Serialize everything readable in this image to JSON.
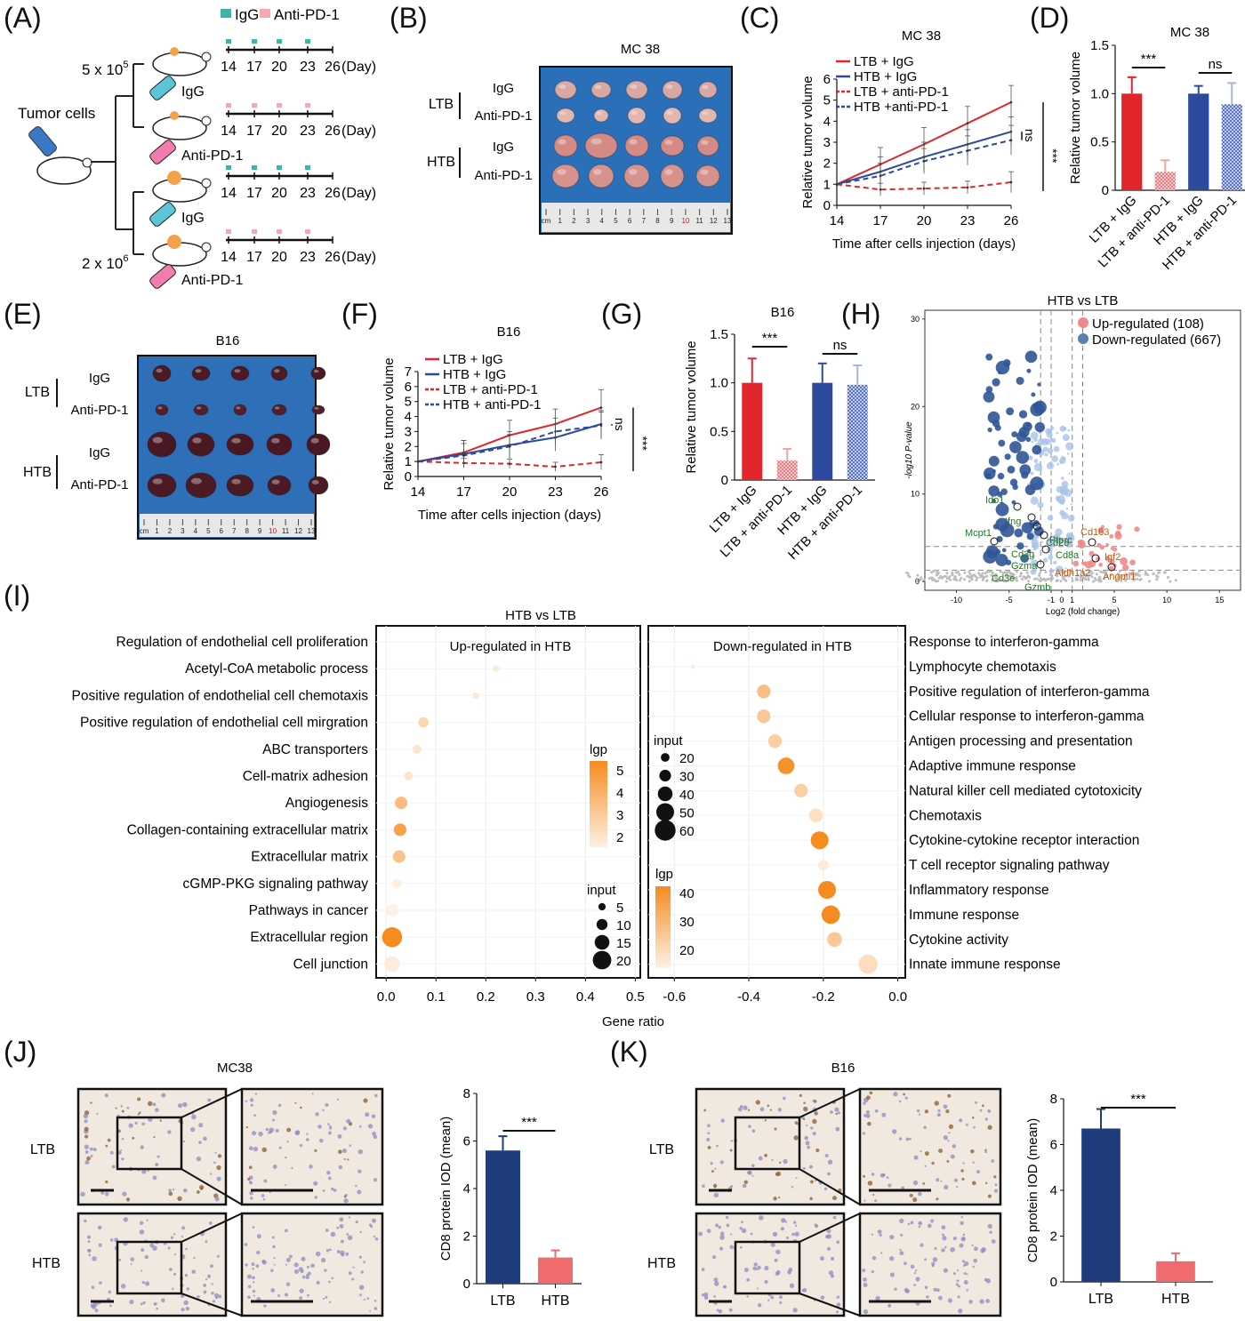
{
  "panels": [
    "(A)",
    "(B)",
    "(C)",
    "(D)",
    "(E)",
    "(F)",
    "(G)",
    "(H)",
    "(I)",
    "(J)",
    "(K)"
  ],
  "panelA": {
    "legend_igg": "IgG",
    "legend_anti": "Anti-PD-1",
    "tumor_cells": "Tumor cells",
    "dose_low": "5 x 10",
    "dose_low_exp": "5",
    "dose_high": "2 x 10",
    "dose_high_exp": "6",
    "timeline": [
      "14",
      "17",
      "20",
      "23",
      "26"
    ],
    "day_label": "(Day)",
    "syringe_labels": [
      "IgG",
      "Anti-PD-1",
      "IgG",
      "Anti-PD-1"
    ],
    "colors": {
      "igg": "#3bb5a7",
      "anti": "#f4a9b1",
      "syringe_igg": "#5bc6d8",
      "syringe_anti": "#f07cb0"
    }
  },
  "panelB": {
    "title": "MC 38",
    "groups": [
      "LTB",
      "HTB"
    ],
    "rows": [
      "IgG",
      "Anti-PD-1",
      "IgG",
      "Anti-PD-1"
    ],
    "ruler": [
      "cm",
      "1",
      "2",
      "3",
      "4",
      "5",
      "6",
      "7",
      "8",
      "9",
      "10",
      "11",
      "12",
      "13"
    ]
  },
  "panelE": {
    "title": "B16",
    "groups": [
      "LTB",
      "HTB"
    ],
    "rows": [
      "IgG",
      "Anti-PD-1",
      "IgG",
      "Anti-PD-1"
    ],
    "ruler": [
      "cm",
      "1",
      "2",
      "3",
      "4",
      "5",
      "6",
      "7",
      "8",
      "9",
      "10",
      "11",
      "12",
      "13"
    ]
  },
  "panelH": {
    "up_label": "Up-regulated (108)",
    "down_label": "Down-regulated (667)",
    "gene_labels": [
      "Ido1",
      "Ifng",
      "Mcpt1",
      "Ptprc",
      "Cd28",
      "Cd3g",
      "Cd8a",
      "Gzma",
      "Cd3e",
      "Gzmb",
      "Cd163",
      "Igf2",
      "Aldh1a2",
      "Angptl1"
    ]
  },
  "panelI": {
    "title": "HTB vs LTB",
    "up_title": "Up-regulated in HTB",
    "down_title": "Down-regulated in HTB",
    "xlabel": "Gene ratio",
    "legend_lgp": "lgp",
    "legend_input": "input"
  },
  "panelJ": {
    "title": "MC38",
    "rows": [
      "LTB",
      "HTB"
    ]
  },
  "panelK": {
    "title": "B16",
    "rows": [
      "LTB",
      "HTB"
    ]
  },
  "chart_data": [
    {
      "id": "C",
      "type": "line",
      "title": "MC 38",
      "xlabel": "Time after cells injection (days)",
      "ylabel": "Relative tumor volume",
      "x": [
        14,
        17,
        20,
        23,
        26
      ],
      "ylim": [
        0,
        6
      ],
      "yticks": [
        0,
        1,
        2,
        3,
        4,
        5,
        6
      ],
      "series": [
        {
          "name": "LTB + IgG",
          "values": [
            1,
            1.95,
            2.9,
            3.9,
            4.9
          ],
          "err": [
            0,
            0.8,
            0.8,
            0.8,
            0.8
          ],
          "color": "#e0262b",
          "dash": false
        },
        {
          "name": "HTB + IgG",
          "values": [
            1,
            1.6,
            2.3,
            2.9,
            3.5
          ],
          "err": [
            0,
            0.7,
            0.7,
            0.7,
            0.7
          ],
          "color": "#2e4a9e",
          "dash": false
        },
        {
          "name": "LTB + anti-PD-1",
          "values": [
            1,
            0.75,
            0.8,
            0.85,
            1.1
          ],
          "err": [
            0,
            0.3,
            0.3,
            0.3,
            0.5
          ],
          "color": "#e0262b",
          "dash": true
        },
        {
          "name": "HTB +anti-PD-1",
          "values": [
            1,
            1.4,
            2.1,
            2.6,
            3.1
          ],
          "err": [
            0,
            0.6,
            0.6,
            0.7,
            0.7
          ],
          "color": "#2e4a9e",
          "dash": true
        }
      ],
      "annotations": [
        "ns",
        "***"
      ]
    },
    {
      "id": "D",
      "type": "bar",
      "title": "MC 38",
      "ylabel": "Relative tumor volume",
      "categories": [
        "LTB + IgG",
        "LTB + anti-PD-1",
        "HTB + IgG",
        "HTB + anti-PD-1"
      ],
      "values": [
        1.0,
        0.19,
        1.0,
        0.89
      ],
      "err": [
        0.17,
        0.12,
        0.08,
        0.22
      ],
      "colors": [
        "#e0262b",
        "#f2a3a5",
        "#2e4a9e",
        "#a7b6e0"
      ],
      "ylim": [
        0,
        1.5
      ],
      "yticks": [
        "0",
        "0.5",
        "1.0",
        "1.5"
      ],
      "annotations": [
        "***",
        "ns"
      ]
    },
    {
      "id": "F",
      "type": "line",
      "title": "B16",
      "xlabel": "Time after cells injection (days)",
      "ylabel": "Relative tumor volume",
      "x": [
        14,
        17,
        20,
        23,
        26
      ],
      "ylim": [
        0,
        7
      ],
      "yticks": [
        0,
        1,
        2,
        3,
        4,
        5,
        6,
        7
      ],
      "series": [
        {
          "name": "LTB + IgG",
          "values": [
            1,
            1.6,
            2.75,
            3.5,
            4.6
          ],
          "err": [
            0,
            0.8,
            1.0,
            1.0,
            1.2
          ],
          "color": "#e0262b",
          "dash": false
        },
        {
          "name": "HTB + IgG",
          "values": [
            1,
            1.5,
            2.1,
            2.6,
            3.5
          ],
          "err": [
            0,
            0.9,
            0.9,
            0.9,
            0.9
          ],
          "color": "#2e4a9e",
          "dash": false
        },
        {
          "name": "LTB + anti-PD-1",
          "values": [
            1,
            0.9,
            0.85,
            0.65,
            0.95
          ],
          "err": [
            0,
            0.3,
            0.3,
            0.3,
            0.5
          ],
          "color": "#e0262b",
          "dash": true
        },
        {
          "name": "HTB + anti-PD-1",
          "values": [
            1,
            1.4,
            2.0,
            3.0,
            3.4
          ],
          "err": [
            0,
            0.8,
            0.8,
            0.9,
            0.9
          ],
          "color": "#2e4a9e",
          "dash": true
        }
      ],
      "annotations": [
        "ns",
        "***"
      ]
    },
    {
      "id": "G",
      "type": "bar",
      "title": "B16",
      "ylabel": "Relative tumor volume",
      "categories": [
        "LTB + IgG",
        "LTB + anti-PD-1",
        "HTB + IgG",
        "HTB + anti-PD-1"
      ],
      "values": [
        1.0,
        0.2,
        1.0,
        0.98
      ],
      "err": [
        0.25,
        0.12,
        0.2,
        0.2
      ],
      "colors": [
        "#e0262b",
        "#f2a3a5",
        "#2e4a9e",
        "#a7b6e0"
      ],
      "ylim": [
        0,
        1.5
      ],
      "yticks": [
        "0",
        "0.5",
        "1.0",
        "1.5"
      ],
      "annotations": [
        "***",
        "ns"
      ]
    },
    {
      "id": "H",
      "type": "scatter",
      "title": "HTB vs LTB",
      "xlabel": "Log2 (fold change)",
      "ylabel": "-log10 P-value",
      "xlim": [
        -13,
        17
      ],
      "ylim": [
        -1,
        31
      ],
      "xticks": [
        "-10",
        "-5",
        "-1",
        "0",
        "1",
        "5",
        "10",
        "15"
      ],
      "yticks": [
        "0",
        "10",
        "20",
        "30"
      ],
      "legend": [
        "Up-regulated (108)",
        "Down-regulated (667)"
      ]
    },
    {
      "id": "I-up",
      "type": "scatter",
      "title": "Up-regulated in HTB",
      "xlabel": "Gene ratio",
      "xlim": [
        -0.02,
        0.51
      ],
      "xticks": [
        "0.0",
        "0.1",
        "0.2",
        "0.3",
        "0.4",
        "0.5"
      ],
      "categories": [
        "Regulation of endothelial cell proliferation",
        "Acetyl-CoA metabolic process",
        "Positive regulation of endothelial cell chemotaxis",
        "Positive regulation of endothelial cell mirgration",
        "ABC transporters",
        "Cell-matrix adhesion",
        "Angiogenesis",
        "Collagen-containing extracellular matrix",
        "Extracellular matrix",
        "cGMP-PKG signaling pathway",
        "Pathways in cancer",
        "Extracellular region",
        "Cell junction"
      ],
      "x": [
        null,
        0.22,
        0.18,
        0.075,
        0.062,
        0.045,
        0.03,
        0.028,
        0.026,
        0.022,
        0.012,
        0.012,
        0.012
      ],
      "lgp": [
        null,
        1.6,
        1.6,
        2.4,
        1.8,
        1.8,
        3.5,
        4.6,
        3.2,
        1.4,
        1.3,
        5.5,
        1.5
      ],
      "input": [
        null,
        4,
        4,
        9,
        7,
        7,
        12,
        12,
        12,
        8,
        12,
        22,
        16
      ],
      "legend_lgp": [
        "5",
        "4",
        "3",
        "2"
      ],
      "legend_input": [
        "5",
        "10",
        "15",
        "20"
      ]
    },
    {
      "id": "I-down",
      "type": "scatter",
      "title": "Down-regulated in HTB",
      "xlabel": "Gene ratio",
      "xlim": [
        -0.67,
        0.02
      ],
      "xticks": [
        "-0.6",
        "-0.4",
        "-0.2",
        "0.0"
      ],
      "categories": [
        "Response to interferon-gamma",
        "Lymphocyte chemotaxis",
        "Positive regulation of interferon-gamma",
        "Cellular response to interferon-gamma",
        "Antigen processing and presentation",
        "Adaptive immune response",
        "Natural killer cell mediated cytotoxicity",
        "Chemotaxis",
        "Cytokine-cytokine receptor interaction",
        "T cell receptor signaling pathway",
        "Inflammatory response",
        "Immune response",
        "Cytokine activity",
        "Innate immune response"
      ],
      "x": [
        null,
        -0.55,
        -0.36,
        -0.36,
        -0.33,
        -0.3,
        -0.26,
        -0.22,
        -0.21,
        -0.2,
        -0.19,
        -0.18,
        -0.17,
        -0.08
      ],
      "lgp": [
        null,
        12,
        25,
        22,
        20,
        38,
        20,
        15,
        40,
        12,
        40,
        40,
        22,
        16
      ],
      "input": [
        null,
        6,
        36,
        36,
        36,
        46,
        36,
        36,
        50,
        26,
        50,
        52,
        40,
        54
      ],
      "legend_lgp": [
        "40",
        "30",
        "20"
      ],
      "legend_input": [
        "20",
        "30",
        "40",
        "50",
        "60"
      ]
    },
    {
      "id": "J",
      "type": "bar",
      "ylabel": "CD8 protein IOD (mean)",
      "categories": [
        "LTB",
        "HTB"
      ],
      "values": [
        5.6,
        1.1
      ],
      "err": [
        0.6,
        0.3
      ],
      "colors": [
        "#1f3c7c",
        "#ef6b6e"
      ],
      "ylim": [
        0,
        8
      ],
      "yticks": [
        "0",
        "2",
        "4",
        "6",
        "8"
      ],
      "annotations": [
        "***"
      ]
    },
    {
      "id": "K",
      "type": "bar",
      "ylabel": "CD8 protein IOD (mean)",
      "categories": [
        "LTB",
        "HTB"
      ],
      "values": [
        6.7,
        0.9
      ],
      "err": [
        0.85,
        0.35
      ],
      "colors": [
        "#1f3c7c",
        "#ef6b6e"
      ],
      "ylim": [
        0,
        8
      ],
      "yticks": [
        "0",
        "2",
        "4",
        "6",
        "8"
      ],
      "annotations": [
        "***"
      ]
    }
  ]
}
